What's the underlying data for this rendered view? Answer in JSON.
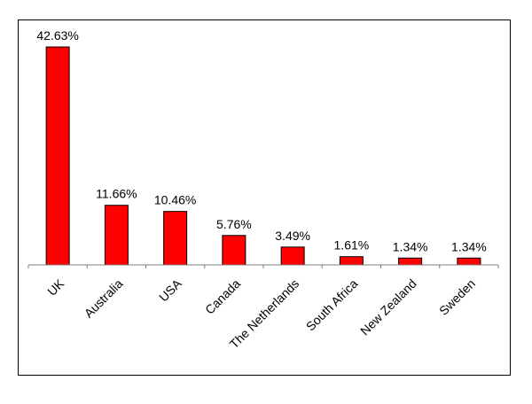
{
  "chart_data": {
    "type": "bar",
    "categories": [
      "UK",
      "Australia",
      "USA",
      "Canada",
      "The Netherlands",
      "South Africa",
      "New Zealand",
      "Sweden"
    ],
    "values": [
      42.63,
      11.66,
      10.46,
      5.76,
      3.49,
      1.61,
      1.34,
      1.34
    ],
    "data_labels": [
      "42.63%",
      "11.66%",
      "10.46%",
      "5.76%",
      "3.49%",
      "1.61%",
      "1.34%",
      "1.34%"
    ],
    "bar_color": "#ff0000",
    "bar_edge_color": "#000000",
    "title": "",
    "xlabel": "",
    "ylabel": "",
    "ylim": [
      0,
      42.63
    ],
    "grid": false,
    "legend": "none"
  }
}
